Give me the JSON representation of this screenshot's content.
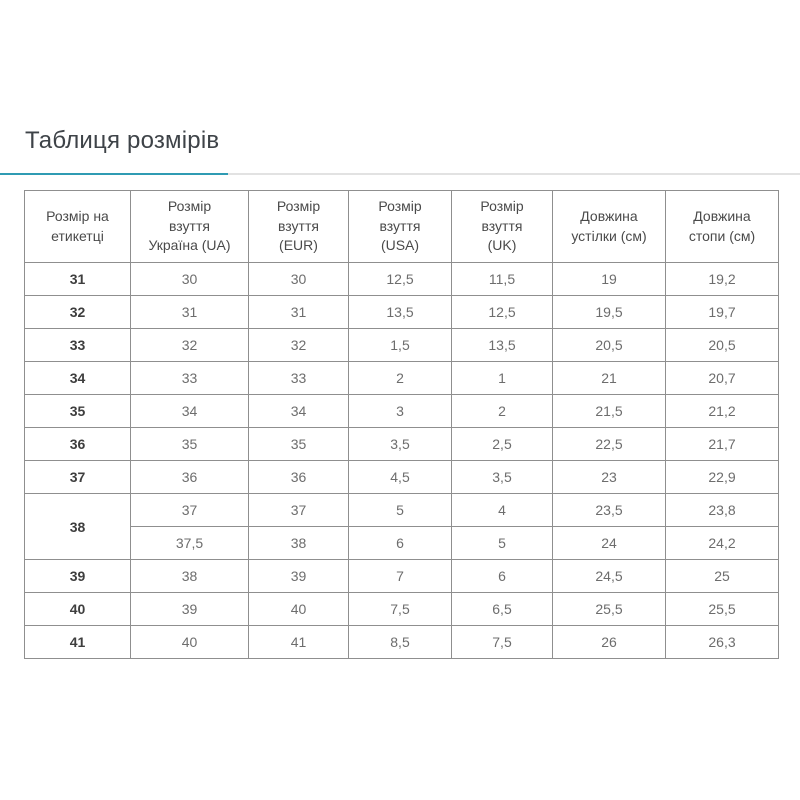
{
  "page": {
    "title": "Таблиця розмірів"
  },
  "colors": {
    "accent_underline": "#2f9bb3",
    "divider_gray": "#e2e2e2",
    "table_border": "#8f8f8f",
    "header_text": "#4a4a4a",
    "row_label_text": "#3e3e3e",
    "cell_text": "#6d6d6d",
    "title_text": "#3e4348",
    "background": "#ffffff"
  },
  "chart_data": {
    "type": "table",
    "title": "Таблиця розмірів",
    "columns": [
      [
        "Розмір на",
        "етикетці"
      ],
      [
        "Розмір",
        "взуття",
        "Україна (UA)"
      ],
      [
        "Розмір",
        "взуття",
        "(EUR)"
      ],
      [
        "Розмір",
        "взуття",
        "(USA)"
      ],
      [
        "Розмір",
        "взуття",
        "(UK)"
      ],
      [
        "Довжина",
        "устілки (см)"
      ],
      [
        "Довжина",
        "стопи (см)"
      ]
    ],
    "rows": [
      {
        "label": "31",
        "span": 1,
        "cells": [
          "30",
          "30",
          "12,5",
          "11,5",
          "19",
          "19,2"
        ]
      },
      {
        "label": "32",
        "span": 1,
        "cells": [
          "31",
          "31",
          "13,5",
          "12,5",
          "19,5",
          "19,7"
        ]
      },
      {
        "label": "33",
        "span": 1,
        "cells": [
          "32",
          "32",
          "1,5",
          "13,5",
          "20,5",
          "20,5"
        ]
      },
      {
        "label": "34",
        "span": 1,
        "cells": [
          "33",
          "33",
          "2",
          "1",
          "21",
          "20,7"
        ]
      },
      {
        "label": "35",
        "span": 1,
        "cells": [
          "34",
          "34",
          "3",
          "2",
          "21,5",
          "21,2"
        ]
      },
      {
        "label": "36",
        "span": 1,
        "cells": [
          "35",
          "35",
          "3,5",
          "2,5",
          "22,5",
          "21,7"
        ]
      },
      {
        "label": "37",
        "span": 1,
        "cells": [
          "36",
          "36",
          "4,5",
          "3,5",
          "23",
          "22,9"
        ]
      },
      {
        "label": "38",
        "span": 2,
        "cells": [
          "37",
          "37",
          "5",
          "4",
          "23,5",
          "23,8"
        ]
      },
      {
        "label": "",
        "span": 0,
        "cells": [
          "37,5",
          "38",
          "6",
          "5",
          "24",
          "24,2"
        ]
      },
      {
        "label": "39",
        "span": 1,
        "cells": [
          "38",
          "39",
          "7",
          "6",
          "24,5",
          "25"
        ]
      },
      {
        "label": "40",
        "span": 1,
        "cells": [
          "39",
          "40",
          "7,5",
          "6,5",
          "25,5",
          "25,5"
        ]
      },
      {
        "label": "41",
        "span": 1,
        "cells": [
          "40",
          "41",
          "8,5",
          "7,5",
          "26",
          "26,3"
        ]
      }
    ]
  }
}
